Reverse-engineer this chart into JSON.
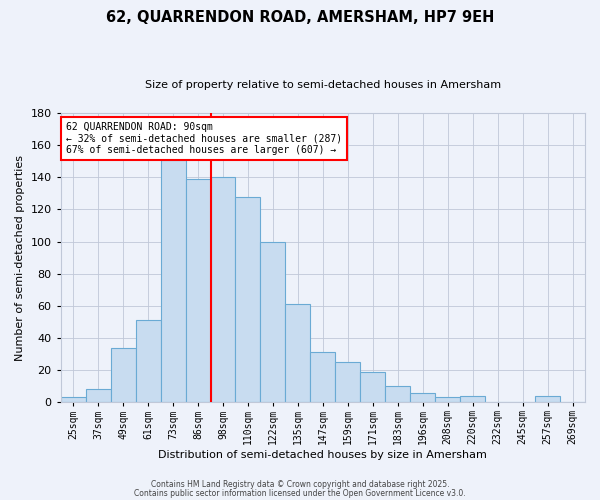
{
  "title": "62, QUARRENDON ROAD, AMERSHAM, HP7 9EH",
  "subtitle": "Size of property relative to semi-detached houses in Amersham",
  "xlabel": "Distribution of semi-detached houses by size in Amersham",
  "ylabel": "Number of semi-detached properties",
  "bar_labels": [
    "25sqm",
    "37sqm",
    "49sqm",
    "61sqm",
    "73sqm",
    "86sqm",
    "98sqm",
    "110sqm",
    "122sqm",
    "135sqm",
    "147sqm",
    "159sqm",
    "171sqm",
    "183sqm",
    "196sqm",
    "208sqm",
    "220sqm",
    "232sqm",
    "245sqm",
    "257sqm",
    "269sqm"
  ],
  "bar_values": [
    3,
    8,
    34,
    51,
    151,
    139,
    140,
    128,
    100,
    61,
    31,
    25,
    19,
    10,
    6,
    3,
    4,
    0,
    0,
    4,
    0
  ],
  "bar_color": "#c8dcf0",
  "bar_edge_color": "#6aaad4",
  "annotation_title": "62 QUARRENDON ROAD: 90sqm",
  "annotation_line1": "← 32% of semi-detached houses are smaller (287)",
  "annotation_line2": "67% of semi-detached houses are larger (607) →",
  "vline_color": "red",
  "ylim": [
    0,
    180
  ],
  "yticks": [
    0,
    20,
    40,
    60,
    80,
    100,
    120,
    140,
    160,
    180
  ],
  "footer1": "Contains HM Land Registry data © Crown copyright and database right 2025.",
  "footer2": "Contains public sector information licensed under the Open Government Licence v3.0.",
  "bg_color": "#eef2fa",
  "grid_color": "#c0c8d8"
}
